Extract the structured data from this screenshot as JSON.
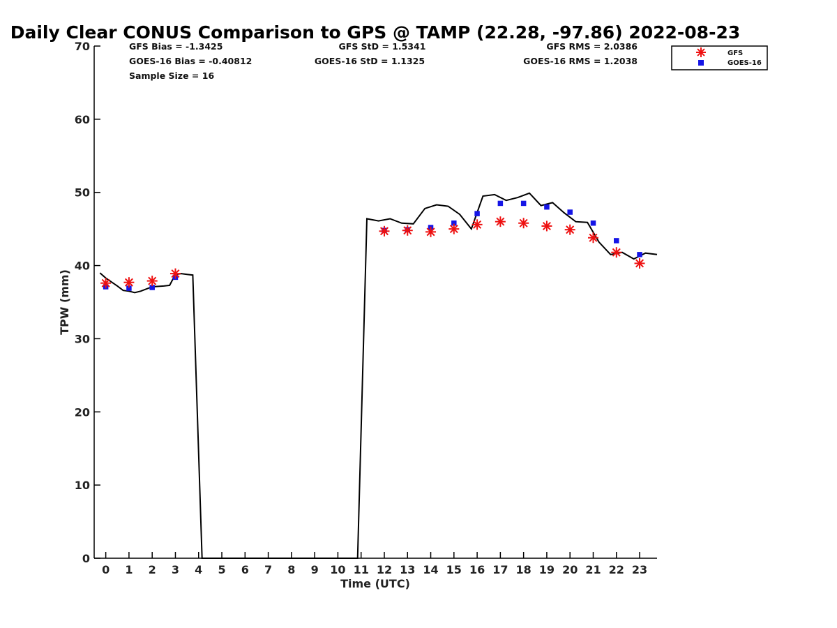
{
  "chart_data": {
    "type": "line",
    "title": "Daily Clear CONUS Comparison to GPS @ TAMP (22.28, -97.86) 2022-08-23",
    "xlabel": "Time (UTC)",
    "ylabel": "TPW (mm)",
    "xlim": [
      -0.5,
      23.75
    ],
    "ylim": [
      0,
      70
    ],
    "x_ticks": [
      0,
      1,
      2,
      3,
      4,
      5,
      6,
      7,
      8,
      9,
      10,
      11,
      12,
      13,
      14,
      15,
      16,
      17,
      18,
      19,
      20,
      21,
      22,
      23
    ],
    "y_ticks": [
      0,
      10,
      20,
      30,
      40,
      50,
      60,
      70
    ],
    "grid": false,
    "legend_position": "top-right",
    "stats": {
      "gfs_bias": "GFS Bias = -1.3425",
      "goes_bias": "GOES-16 Bias = -0.40812",
      "sample_size": "Sample Size = 16",
      "gfs_std": "GFS StD = 1.5341",
      "goes_std": "GOES-16 StD = 1.1325",
      "gfs_rms": "GFS RMS = 2.0386",
      "goes_rms": "GOES-16 RMS = 1.2038"
    },
    "gps_line": {
      "color": "#000000",
      "x": [
        -0.25,
        0,
        0.5,
        0.75,
        1,
        1.25,
        1.5,
        2,
        2.5,
        2.75,
        3,
        3.25,
        3.5,
        3.75,
        4.15,
        10.85,
        11.25,
        11.75,
        12.25,
        12.75,
        13.25,
        13.75,
        14.25,
        14.75,
        15.25,
        15.75,
        16.25,
        16.75,
        17.25,
        17.75,
        18.25,
        18.75,
        19.25,
        19.75,
        20.25,
        20.75,
        21.25,
        21.75,
        22.25,
        22.75,
        23.25,
        23.75
      ],
      "y": [
        39.0,
        38.3,
        37.2,
        36.6,
        36.5,
        36.3,
        36.5,
        37.1,
        37.2,
        37.3,
        38.8,
        38.9,
        38.8,
        38.7,
        0,
        0,
        46.4,
        46.1,
        46.4,
        45.8,
        45.7,
        47.8,
        48.3,
        48.1,
        47.0,
        45.0,
        49.5,
        49.7,
        48.9,
        49.3,
        49.9,
        48.2,
        48.6,
        47.2,
        46.0,
        45.9,
        43.2,
        41.5,
        41.8,
        40.9,
        41.7,
        41.5
      ]
    },
    "series": [
      {
        "name": "GFS",
        "marker": "asterisk",
        "color": "#ee1111",
        "x": [
          0,
          1,
          2,
          3,
          12,
          13,
          14,
          15,
          16,
          17,
          18,
          19,
          20,
          21,
          22,
          23
        ],
        "y": [
          37.6,
          37.7,
          37.9,
          38.9,
          44.7,
          44.8,
          44.6,
          45.0,
          45.6,
          46.0,
          45.8,
          45.4,
          44.9,
          43.8,
          41.8,
          40.3
        ]
      },
      {
        "name": "GOES-16",
        "marker": "square",
        "color": "#1515e6",
        "x": [
          0,
          1,
          2,
          3,
          12,
          13,
          14,
          15,
          16,
          17,
          18,
          19,
          20,
          21,
          22,
          23
        ],
        "y": [
          37.1,
          36.9,
          37.0,
          38.4,
          44.8,
          44.9,
          45.2,
          45.8,
          47.1,
          48.5,
          48.5,
          48.0,
          47.3,
          45.8,
          43.4,
          41.5
        ]
      }
    ]
  }
}
